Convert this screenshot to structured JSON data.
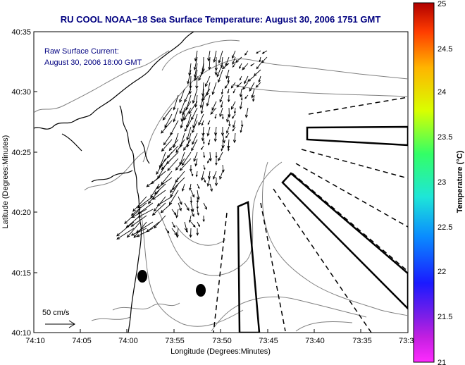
{
  "title": "RU COOL  NOAA−18  Sea Surface Temperature:  August 30, 2006 1751 GMT",
  "inset": {
    "line1": "Raw Surface Current:",
    "line2": "August 30, 2006 18:00 GMT"
  },
  "scale_label": "50 cm/s",
  "axes": {
    "xlabel": "Longitude (Degrees:Minutes)",
    "ylabel": "Latitude (Degrees:Minutes)",
    "x_ticks": [
      "74:10",
      "74:05",
      "74:00",
      "73:55",
      "73:50",
      "73:45",
      "73:40",
      "73:35",
      "73:3"
    ],
    "y_ticks": [
      "40:35",
      "40:30",
      "40:25",
      "40:20",
      "40:15",
      "40:10"
    ]
  },
  "colorbar": {
    "label": "Temperature (°C)",
    "ticks": [
      "25",
      "24.5",
      "24",
      "23.5",
      "23",
      "22.5",
      "22",
      "21.5",
      "21"
    ],
    "min": 21,
    "max": 25
  },
  "colors": {
    "title": "#000080",
    "arrows": "#000000",
    "contour": "#808080"
  }
}
